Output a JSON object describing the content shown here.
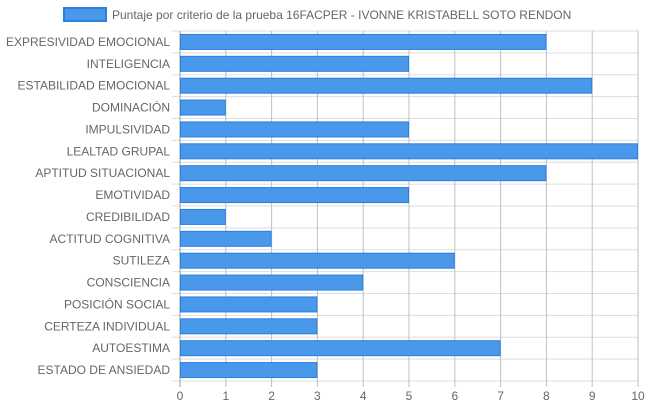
{
  "chart_data": {
    "type": "bar",
    "orientation": "horizontal",
    "categories": [
      "EXPRESIVIDAD EMOCIONAL",
      "INTELIGENCIA",
      "ESTABILIDAD EMOCIONAL",
      "DOMINACIÓN",
      "IMPULSIVIDAD",
      "LEALTAD GRUPAL",
      "APTITUD SITUACIONAL",
      "EMOTIVIDAD",
      "CREDIBILIDAD",
      "ACTITUD COGNITIVA",
      "SUTILEZA",
      "CONSCIENCIA",
      "POSICIÓN SOCIAL",
      "CERTEZA INDIVIDUAL",
      "AUTOESTIMA",
      "ESTADO DE ANSIEDAD"
    ],
    "series": [
      {
        "name": "Puntaje por criterio de la prueba 16FACPER - IVONNE KRISTABELL SOTO RENDON",
        "values": [
          8,
          5,
          9,
          1,
          5,
          10,
          8,
          5,
          1,
          2,
          6,
          4,
          3,
          3,
          7,
          3
        ],
        "color": "#4a98e9",
        "border_color": "#2a7fe0"
      }
    ],
    "xlim": [
      0,
      10
    ],
    "x_ticks": [
      0,
      1,
      2,
      3,
      4,
      5,
      6,
      7,
      8,
      9,
      10
    ],
    "grid": true,
    "legend_position": "top"
  }
}
